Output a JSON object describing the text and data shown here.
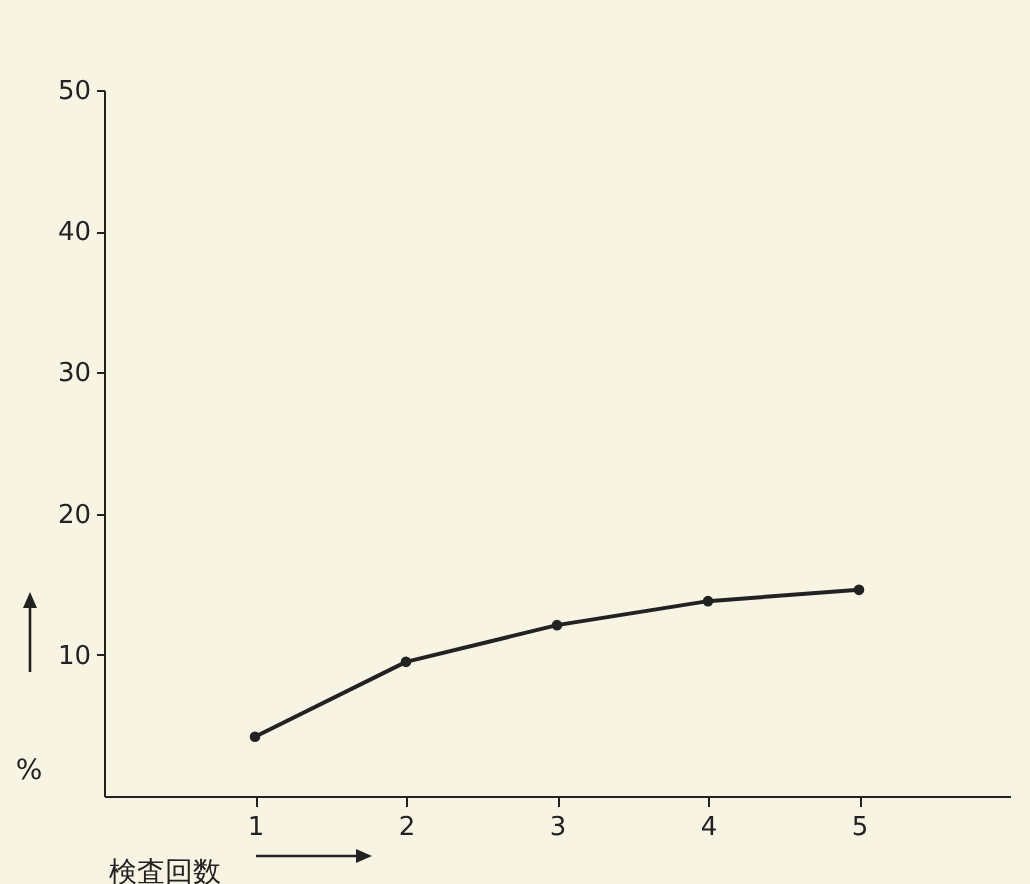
{
  "chart_data": {
    "type": "line",
    "xlabel": "検査回数",
    "ylabel": "%",
    "x": [
      1,
      2,
      3,
      4,
      5
    ],
    "series": [
      {
        "color": "#222222",
        "values": [
          4.2,
          9.5,
          12.1,
          13.8,
          14.6
        ]
      }
    ],
    "xlim": [
      0,
      6
    ],
    "xticks": [
      1,
      2,
      3,
      4,
      5
    ],
    "ylim": [
      0,
      50
    ],
    "yticks": [
      10,
      20,
      30,
      40,
      50
    ],
    "grid": false,
    "legend": false,
    "marker": "circle",
    "line_style": "solid"
  }
}
